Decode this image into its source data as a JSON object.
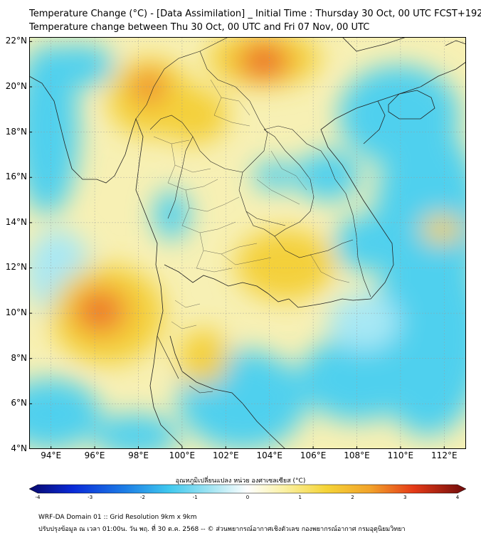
{
  "title_line1": "Temperature Change (°C) - [Data Assimilation] _ Initial Time : Thursday 30 Oct, 00 UTC FCST+192",
  "title_line2": "Temperature change between Thu 30 Oct, 00 UTC and Fri 07 Nov, 00 UTC",
  "map": {
    "lon_range": [
      93,
      113
    ],
    "lat_range": [
      4,
      22.2
    ],
    "lat_ticks": [
      "22°N",
      "20°N",
      "18°N",
      "16°N",
      "14°N",
      "12°N",
      "10°N",
      "8°N",
      "6°N",
      "4°N"
    ],
    "lon_ticks": [
      "94°E",
      "96°E",
      "98°E",
      "100°E",
      "102°E",
      "104°E",
      "106°E",
      "108°E",
      "110°E",
      "112°E"
    ],
    "field_colors": {
      "background": "#f7f0b4",
      "cool": "#4fd0ee",
      "cool_light": "#a8e8f4",
      "warm": "#f4d03a",
      "hot": "#f09030",
      "hottest": "#e84a1c"
    }
  },
  "colorbar": {
    "title": "อุณหภูมิเปลี่ยนแปลง หน่วย องศาเซลเซียส (°C)",
    "ticks": [
      "-4",
      "-3",
      "-2",
      "-1",
      "0",
      "1",
      "2",
      "3",
      "4"
    ],
    "range": [
      -4,
      4
    ]
  },
  "footer_line1": "WRF-DA Domain 01 :: Grid Resolution 9km x 9km",
  "footer_line2": "ปรับปรุงข้อมูล ณ เวลา 01:00น. วัน พฤ. ที่ 30 ต.ค. 2568 -- © ส่วนพยากรณ์อากาศเชิงตัวเลข กองพยากรณ์อากาศ กรมอุตุนิยมวิทยา"
}
